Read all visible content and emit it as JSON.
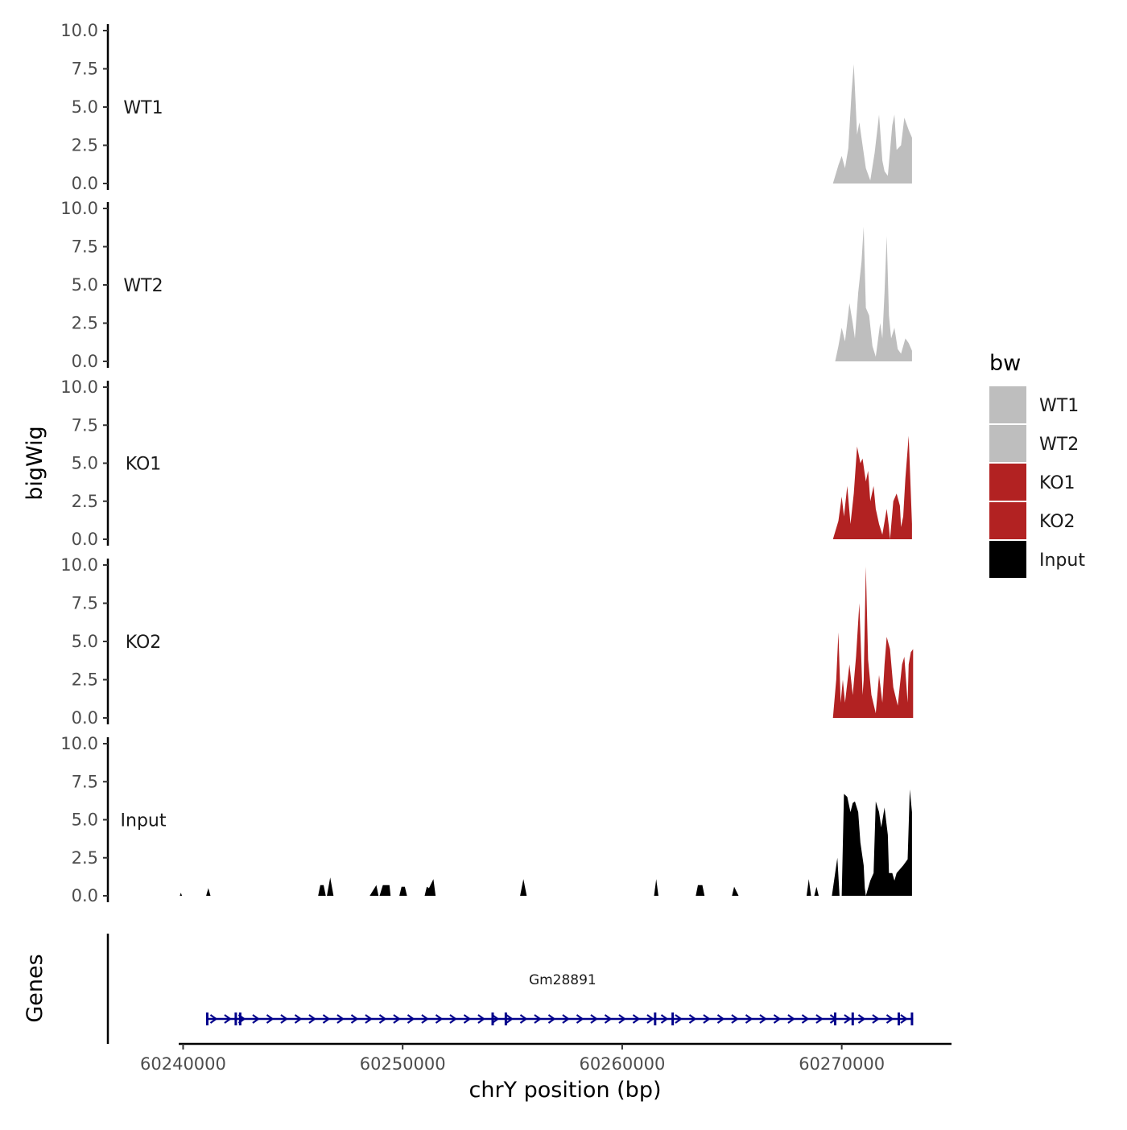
{
  "chart_data": {
    "type": "area",
    "ylabel": "bigWig",
    "xlabel": "chrY position (bp)",
    "ylim": [
      0,
      10
    ],
    "y_ticks": [
      "0.0",
      "2.5",
      "5.0",
      "7.5",
      "10.0"
    ],
    "xlim": [
      60239800,
      60275000
    ],
    "x_ticks": [
      60240000,
      60250000,
      60260000,
      60270000
    ],
    "x_tick_labels": [
      "60240000",
      "60250000",
      "60260000",
      "60270000"
    ],
    "legend": {
      "title": "bw",
      "position": "right",
      "entries": [
        {
          "label": "WT1",
          "color": "#bebebe"
        },
        {
          "label": "WT2",
          "color": "#bebebe"
        },
        {
          "label": "KO1",
          "color": "#b22222"
        },
        {
          "label": "KO2",
          "color": "#b22222"
        },
        {
          "label": "Input",
          "color": "#000000"
        }
      ]
    },
    "series": [
      {
        "name": "WT1",
        "color": "#bebebe",
        "regions": [
          [
            [
              60269600,
              0.0
            ],
            [
              60269850,
              1.2
            ],
            [
              60270000,
              1.8
            ],
            [
              60270150,
              1.0
            ],
            [
              60270300,
              2.3
            ],
            [
              60270450,
              6.0
            ],
            [
              60270550,
              7.8
            ],
            [
              60270700,
              3.2
            ],
            [
              60270800,
              4.0
            ],
            [
              60270950,
              2.5
            ],
            [
              60271100,
              1.0
            ],
            [
              60271300,
              0.2
            ],
            [
              60271500,
              2.0
            ],
            [
              60271700,
              4.5
            ],
            [
              60271850,
              1.5
            ],
            [
              60271950,
              0.8
            ],
            [
              60272100,
              0.5
            ],
            [
              60272300,
              3.8
            ],
            [
              60272400,
              4.5
            ],
            [
              60272500,
              2.2
            ],
            [
              60272700,
              2.5
            ],
            [
              60272850,
              4.3
            ],
            [
              60273050,
              3.5
            ],
            [
              60273200,
              3.0
            ],
            [
              60273200,
              0.0
            ]
          ]
        ]
      },
      {
        "name": "WT2",
        "color": "#bebebe",
        "regions": [
          [
            [
              60269700,
              0.0
            ],
            [
              60269850,
              1.0
            ],
            [
              60270000,
              2.2
            ],
            [
              60270150,
              1.3
            ],
            [
              60270350,
              3.8
            ],
            [
              60270500,
              2.5
            ],
            [
              60270600,
              1.5
            ],
            [
              60270750,
              4.5
            ],
            [
              60270900,
              6.5
            ],
            [
              60271000,
              8.8
            ],
            [
              60271100,
              3.5
            ],
            [
              60271250,
              3.0
            ],
            [
              60271400,
              1.0
            ],
            [
              60271550,
              0.3
            ],
            [
              60271750,
              2.5
            ],
            [
              60271850,
              1.5
            ],
            [
              60271950,
              4.5
            ],
            [
              60272050,
              8.2
            ],
            [
              60272150,
              3.0
            ],
            [
              60272250,
              1.5
            ],
            [
              60272400,
              2.2
            ],
            [
              60272550,
              0.8
            ],
            [
              60272700,
              0.5
            ],
            [
              60272900,
              1.5
            ],
            [
              60273050,
              1.2
            ],
            [
              60273200,
              0.7
            ],
            [
              60273200,
              0.0
            ]
          ]
        ]
      },
      {
        "name": "KO1",
        "color": "#b22222",
        "regions": [
          [
            [
              60269600,
              0.0
            ],
            [
              60269850,
              1.2
            ],
            [
              60270000,
              2.8
            ],
            [
              60270100,
              1.5
            ],
            [
              60270250,
              3.5
            ],
            [
              60270400,
              1.0
            ],
            [
              60270550,
              3.0
            ],
            [
              60270700,
              6.1
            ],
            [
              60270850,
              5.0
            ],
            [
              60270950,
              5.3
            ],
            [
              60271100,
              3.8
            ],
            [
              60271200,
              4.5
            ],
            [
              60271300,
              2.5
            ],
            [
              60271450,
              3.5
            ],
            [
              60271550,
              2.0
            ],
            [
              60271700,
              1.0
            ],
            [
              60271850,
              0.3
            ],
            [
              60272050,
              2.0
            ],
            [
              60272150,
              0.8
            ],
            [
              60272200,
              0.0
            ]
          ],
          [
            [
              60272200,
              0.0
            ],
            [
              60272350,
              2.5
            ],
            [
              60272500,
              3.0
            ],
            [
              60272650,
              2.2
            ],
            [
              60272700,
              0.8
            ],
            [
              60272800,
              1.5
            ],
            [
              60272900,
              4.0
            ],
            [
              60273050,
              6.8
            ],
            [
              60273200,
              1.0
            ],
            [
              60273200,
              0.0
            ]
          ]
        ]
      },
      {
        "name": "KO2",
        "color": "#b22222",
        "regions": [
          [
            [
              60269600,
              0.0
            ],
            [
              60269750,
              2.5
            ],
            [
              60269850,
              5.6
            ],
            [
              60269950,
              1.0
            ],
            [
              60270050,
              2.5
            ],
            [
              60270150,
              1.0
            ],
            [
              60270350,
              3.5
            ],
            [
              60270500,
              1.5
            ],
            [
              60270650,
              4.0
            ],
            [
              60270800,
              7.5
            ],
            [
              60270950,
              1.5
            ],
            [
              60271000,
              2.5
            ],
            [
              60271100,
              9.9
            ],
            [
              60271200,
              3.8
            ],
            [
              60271350,
              1.5
            ],
            [
              60271550,
              0.3
            ],
            [
              60271700,
              2.8
            ],
            [
              60271850,
              1.0
            ],
            [
              60271950,
              3.5
            ],
            [
              60272050,
              5.3
            ],
            [
              60272200,
              4.5
            ],
            [
              60272350,
              2.0
            ],
            [
              60272550,
              0.8
            ],
            [
              60272750,
              3.5
            ],
            [
              60272850,
              4.0
            ],
            [
              60273000,
              1.0
            ],
            [
              60273050,
              3.5
            ],
            [
              60273150,
              4.3
            ],
            [
              60273250,
              4.5
            ],
            [
              60273250,
              0.0
            ]
          ]
        ]
      },
      {
        "name": "Input",
        "color": "#000000",
        "regions": [
          [
            [
              60239850,
              0.0
            ],
            [
              60239900,
              0.2
            ],
            [
              60239950,
              0.0
            ]
          ],
          [
            [
              60241050,
              0.0
            ],
            [
              60241150,
              0.5
            ],
            [
              60241250,
              0.0
            ]
          ],
          [
            [
              60246150,
              0.0
            ],
            [
              60246250,
              0.7
            ],
            [
              60246400,
              0.7
            ],
            [
              60246500,
              0.0
            ]
          ],
          [
            [
              60246550,
              0.0
            ],
            [
              60246700,
              1.2
            ],
            [
              60246850,
              0.0
            ]
          ],
          [
            [
              60248500,
              0.0
            ],
            [
              60248800,
              0.7
            ],
            [
              60248900,
              0.0
            ]
          ],
          [
            [
              60248950,
              0.0
            ],
            [
              60249100,
              0.7
            ],
            [
              60249400,
              0.7
            ],
            [
              60249450,
              0.0
            ]
          ],
          [
            [
              60249850,
              0.0
            ],
            [
              60249950,
              0.6
            ],
            [
              60250100,
              0.6
            ],
            [
              60250200,
              0.0
            ]
          ],
          [
            [
              60251000,
              0.0
            ],
            [
              60251100,
              0.6
            ],
            [
              60251200,
              0.5
            ],
            [
              60251400,
              1.1
            ],
            [
              60251500,
              0.0
            ]
          ],
          [
            [
              60255350,
              0.0
            ],
            [
              60255500,
              1.1
            ],
            [
              60255650,
              0.0
            ]
          ],
          [
            [
              60261450,
              0.0
            ],
            [
              60261550,
              1.1
            ],
            [
              60261650,
              0.0
            ]
          ],
          [
            [
              60263350,
              0.0
            ],
            [
              60263450,
              0.7
            ],
            [
              60263650,
              0.7
            ],
            [
              60263750,
              0.0
            ]
          ],
          [
            [
              60265000,
              0.0
            ],
            [
              60265100,
              0.6
            ],
            [
              60265300,
              0.0
            ]
          ],
          [
            [
              60268400,
              0.0
            ],
            [
              60268500,
              1.1
            ],
            [
              60268600,
              0.0
            ]
          ],
          [
            [
              60268750,
              0.0
            ],
            [
              60268850,
              0.6
            ],
            [
              60268950,
              0.0
            ]
          ],
          [
            [
              60269550,
              0.0
            ],
            [
              60269800,
              2.5
            ],
            [
              60269900,
              0.0
            ]
          ],
          [
            [
              60270000,
              0.0
            ],
            [
              60270100,
              6.7
            ],
            [
              60270250,
              6.5
            ],
            [
              60270400,
              5.5
            ],
            [
              60270500,
              6.1
            ],
            [
              60270600,
              6.2
            ],
            [
              60270750,
              5.5
            ],
            [
              60270850,
              3.5
            ],
            [
              60271000,
              2.0
            ],
            [
              60271050,
              0.5
            ],
            [
              60271100,
              0.0
            ]
          ],
          [
            [
              60271100,
              0.0
            ],
            [
              60271300,
              1.0
            ],
            [
              60271450,
              1.5
            ],
            [
              60271550,
              6.2
            ],
            [
              60271700,
              5.5
            ],
            [
              60271800,
              4.5
            ],
            [
              60271950,
              5.8
            ],
            [
              60272100,
              4.0
            ],
            [
              60272150,
              1.5
            ],
            [
              60272300,
              1.5
            ],
            [
              60272400,
              1.0
            ],
            [
              60272500,
              1.5
            ],
            [
              60272800,
              2.0
            ],
            [
              60273000,
              2.4
            ],
            [
              60273100,
              7.0
            ],
            [
              60273200,
              5.5
            ],
            [
              60273200,
              0.0
            ]
          ]
        ]
      }
    ],
    "genes_track": {
      "ylabel": "Genes",
      "gene_name": "Gm28891",
      "color": "#00008b",
      "start": 60241100,
      "end": 60273250,
      "strand": "+",
      "exons": [
        60241100,
        60242400,
        60242600,
        60254100,
        60254700,
        60261500,
        60262300,
        60269700,
        60270500,
        60272600,
        60273200
      ]
    }
  }
}
